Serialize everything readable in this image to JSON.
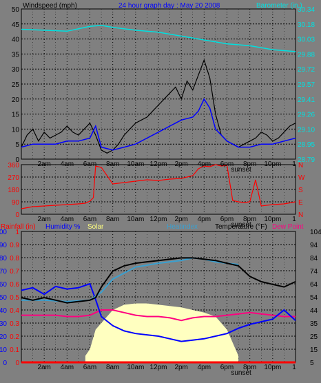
{
  "colors": {
    "bg": "#808080",
    "plot": "#7f7f7f",
    "grid": "#000000",
    "wind": "#000000",
    "gust": "#000000",
    "windAvg": "#0000ff",
    "windGray": "#5a5a5a",
    "baro": "#00e0e0",
    "dir": "#ff0000",
    "rain": "#ff0000",
    "humid": "#0000ff",
    "solar": "#ffffc0",
    "heat": "#3aa0d0",
    "temp": "#000000",
    "dew": "#ff0080",
    "white": "#ffffff"
  },
  "header": {
    "wind_label": "Windspeed (mph)",
    "title": "24 hour graph day : May 20 2008",
    "baro_label": "Barometer (in.)"
  },
  "legend": {
    "rain": "Rainfall (in)",
    "humidity": "Humidity %",
    "solar": "Solar",
    "heatindex": "Heatindex",
    "temperature": "Temperature (°F)",
    "dewpoint": "Dew Point"
  },
  "x_ticks": [
    "2am",
    "4am",
    "6am",
    "8am",
    "10am",
    "12pm",
    "2pm",
    "4pm",
    "6pm",
    "8pm",
    "10pm"
  ],
  "sunset_label": "sunset",
  "sunset_hour": 19,
  "chart_data": [
    {
      "type": "line",
      "name": "wind",
      "xlim": [
        0,
        24
      ],
      "left_axis": {
        "ticks": [
          "50",
          "45",
          "40",
          "35",
          "30",
          "25",
          "20",
          "15",
          "10",
          "5",
          "0"
        ],
        "ylim": [
          0,
          50
        ]
      },
      "right_axis": {
        "ticks": [
          "30.34",
          "30.18",
          "30.03",
          "29.88",
          "29.72",
          "29.57",
          "29.41",
          "29.26",
          "29.10",
          "28.95",
          "28.79"
        ],
        "ylim": [
          28.79,
          30.34
        ]
      },
      "series": [
        {
          "key": "gust",
          "x": [
            0,
            0.5,
            1,
            1.5,
            2,
            2.5,
            3,
            3.5,
            4,
            4.5,
            5,
            5.5,
            6,
            6.5,
            7,
            7.5,
            8,
            8.5,
            9,
            9.5,
            10,
            10.5,
            11,
            11.5,
            12,
            12.5,
            13,
            13.5,
            14,
            14.5,
            15,
            15.5,
            16,
            16.5,
            17,
            17.5,
            18,
            18.5,
            19,
            19.5,
            20,
            20.5,
            21,
            21.5,
            22,
            22.5,
            23,
            23.5,
            24
          ],
          "y": [
            4,
            8,
            10,
            6,
            9,
            7,
            8,
            9,
            11,
            9,
            8,
            10,
            12,
            8,
            3,
            2,
            3,
            5,
            8,
            10,
            12,
            13,
            14,
            16,
            18,
            20,
            22,
            24,
            20,
            26,
            23,
            28,
            33,
            27,
            15,
            8,
            6,
            5,
            4,
            5,
            6,
            7,
            9,
            8,
            6,
            7,
            9,
            11,
            12
          ]
        },
        {
          "key": "avg",
          "x": [
            0,
            1,
            2,
            3,
            4,
            5,
            6,
            6.5,
            7,
            8,
            9,
            10,
            11,
            12,
            13,
            14,
            15,
            15.5,
            16,
            16.5,
            17,
            18,
            19,
            20,
            21,
            22,
            23,
            24
          ],
          "y": [
            4,
            5,
            5,
            5,
            6,
            6,
            7,
            11,
            4,
            3,
            4,
            5,
            7,
            9,
            11,
            13,
            14,
            16,
            20,
            17,
            10,
            6,
            4,
            4,
            5,
            5,
            6,
            7
          ]
        },
        {
          "key": "baro",
          "x": [
            0,
            2,
            4,
            6,
            7,
            8,
            10,
            12,
            14,
            16,
            18,
            20,
            22,
            24
          ],
          "y": [
            30.13,
            30.12,
            30.11,
            30.16,
            30.17,
            30.15,
            30.12,
            30.1,
            30.06,
            30.02,
            29.98,
            29.96,
            29.92,
            29.9
          ]
        }
      ]
    },
    {
      "type": "line",
      "name": "wind_direction",
      "left_axis": {
        "ticks": [
          "360",
          "270",
          "180",
          "90",
          "0"
        ],
        "ylim": [
          0,
          360
        ]
      },
      "right_axis": {
        "ticks": [
          "N",
          "W",
          "S",
          "E",
          "N"
        ]
      },
      "x": [
        0,
        1,
        2,
        3,
        4,
        5,
        5.6,
        6,
        6.3,
        6.5,
        7,
        8,
        9,
        10,
        11,
        12,
        13,
        14,
        15,
        15.5,
        16,
        16.5,
        17,
        17.5,
        18,
        18.5,
        19,
        19.5,
        20,
        20.5,
        21,
        22,
        23,
        24
      ],
      "y": [
        40,
        55,
        60,
        65,
        70,
        75,
        80,
        95,
        120,
        350,
        340,
        220,
        230,
        240,
        250,
        245,
        255,
        260,
        280,
        330,
        350,
        345,
        360,
        350,
        355,
        100,
        90,
        85,
        90,
        250,
        60,
        70,
        75,
        90
      ]
    },
    {
      "type": "line",
      "name": "temperature_humidity",
      "xlim": [
        0,
        24
      ],
      "left_axis": {
        "ticks": [
          "100",
          "90",
          "80",
          "70",
          "60",
          "50",
          "40",
          "30",
          "20",
          "10",
          "0"
        ],
        "ylim": [
          0,
          100
        ]
      },
      "rain_axis": {
        "ticks": [
          "1",
          "0.9",
          "0.8",
          "0.7",
          "0.6",
          "0.5",
          "0.4",
          "0.3",
          "0.2",
          "0.1",
          "0"
        ],
        "ylim": [
          0,
          1
        ]
      },
      "right_axis": {
        "ticks": [
          "104",
          "94",
          "84",
          "74",
          "64",
          "54",
          "44",
          "35",
          "25",
          "15",
          "5"
        ],
        "ylim": [
          5,
          104
        ]
      },
      "series": [
        {
          "key": "temp",
          "x": [
            0,
            1,
            2,
            3,
            4,
            5,
            6,
            6.5,
            7,
            8,
            9,
            10,
            11,
            12,
            13,
            14,
            15,
            16,
            17,
            18,
            19,
            20,
            21,
            22,
            23,
            24
          ],
          "y": [
            54,
            52,
            54,
            52,
            50,
            51,
            52,
            54,
            62,
            74,
            78,
            80,
            81,
            82,
            83,
            84,
            84,
            83,
            82,
            80,
            78,
            70,
            66,
            64,
            62,
            66
          ]
        },
        {
          "key": "heat",
          "x": [
            0,
            2,
            4,
            6,
            7,
            8,
            10,
            12,
            14,
            15,
            16,
            17,
            18,
            19
          ],
          "y": [
            52,
            52,
            51,
            52,
            58,
            68,
            77,
            80,
            82,
            84,
            83,
            81,
            80,
            79
          ]
        },
        {
          "key": "humidity",
          "x": [
            0,
            1,
            2,
            3,
            4,
            5,
            6,
            6.5,
            7,
            8,
            9,
            10,
            11,
            12,
            13,
            14,
            15,
            16,
            17,
            18,
            19,
            20,
            21,
            22,
            23,
            24
          ],
          "y": [
            55,
            57,
            52,
            58,
            56,
            57,
            60,
            48,
            35,
            28,
            24,
            22,
            21,
            20,
            18,
            16,
            17,
            18,
            20,
            22,
            26,
            29,
            31,
            33,
            40,
            32
          ]
        },
        {
          "key": "dew",
          "x": [
            0,
            1,
            2,
            3,
            4,
            5,
            6,
            6.5,
            7,
            8,
            9,
            10,
            11,
            12,
            13,
            14,
            15,
            16,
            17,
            18,
            19,
            20,
            21,
            22,
            23,
            24
          ],
          "y": [
            36,
            36,
            36,
            36,
            35,
            35,
            36,
            38,
            40,
            40,
            38,
            36,
            35,
            35,
            34,
            32,
            34,
            35,
            35,
            36,
            37,
            38,
            37,
            36,
            35,
            35
          ]
        },
        {
          "key": "solar",
          "x": [
            5.6,
            6,
            6.5,
            7,
            8,
            9,
            10,
            11,
            12,
            13,
            14,
            15,
            16,
            17,
            18,
            18.5,
            19
          ],
          "y": [
            5,
            10,
            25,
            30,
            40,
            44,
            45,
            45,
            44,
            43,
            42,
            40,
            38,
            35,
            25,
            15,
            5
          ]
        },
        {
          "key": "rain",
          "x": [
            0,
            24
          ],
          "y": [
            0,
            0
          ]
        }
      ]
    }
  ]
}
